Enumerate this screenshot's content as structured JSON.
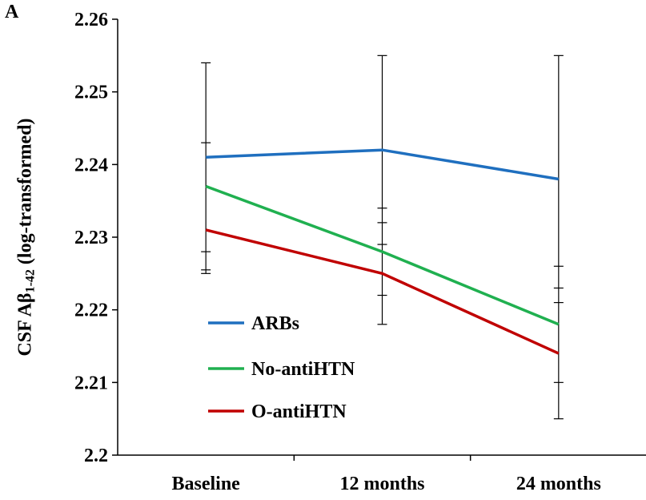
{
  "panel_label": "A",
  "ylabel_prefix": "CSF Aβ",
  "ylabel_sub": "1-42",
  "ylabel_suffix": " (log-transformed)",
  "colors": {
    "ARBs": "#1f6fbf",
    "No-antiHTN": "#20b050",
    "O-antiHTN": "#c00000"
  },
  "chart_data": {
    "type": "line",
    "categories": [
      "Baseline",
      "12 months",
      "24 months"
    ],
    "ylabel": "CSF Aβ1-42 (log-transformed)",
    "ylim": [
      2.2,
      2.26
    ],
    "yticks": [
      "2.2",
      "2.21",
      "2.22",
      "2.23",
      "2.24",
      "2.25",
      "2.26"
    ],
    "grid": false,
    "legend_position": "bottom-left",
    "series": [
      {
        "name": "ARBs",
        "values": [
          2.241,
          2.242,
          2.238
        ]
      },
      {
        "name": "No-antiHTN",
        "values": [
          2.237,
          2.228,
          2.218
        ]
      },
      {
        "name": "O-antiHTN",
        "values": [
          2.231,
          2.225,
          2.214
        ]
      }
    ],
    "error_bars": [
      {
        "x": "Baseline",
        "low": 2.225,
        "high": 2.254,
        "caps": [
          2.2255,
          2.228,
          2.243
        ]
      },
      {
        "x": "12 months",
        "low": 2.218,
        "high": 2.255,
        "caps": [
          2.222,
          2.229,
          2.232,
          2.234
        ]
      },
      {
        "x": "24 months",
        "low": 2.205,
        "high": 2.255,
        "caps": [
          2.21,
          2.221,
          2.223,
          2.226
        ]
      }
    ]
  }
}
